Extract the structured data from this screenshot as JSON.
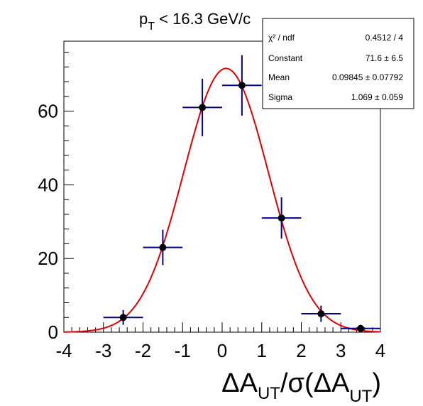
{
  "title": {
    "prefix": "p",
    "sub": "T",
    "rest": " < 16.3 GeV/c"
  },
  "xaxis_title": {
    "part1": "ΔA",
    "sub1": "UT",
    "part2": "/σ(ΔA",
    "sub2": "UT",
    "part3": ")"
  },
  "stats": {
    "rows": [
      {
        "label": "χ² / ndf",
        "value": "0.4512 / 4"
      },
      {
        "label": "Constant",
        "value": "71.6  ± 6.5"
      },
      {
        "label": "Mean",
        "value": "0.09845  ± 0.07792"
      },
      {
        "label": "Sigma",
        "value": "1.069  ± 0.059"
      }
    ]
  },
  "colors": {
    "points": "#000000",
    "errorbars": "#00008b",
    "fit": "#e00000",
    "frame": "#000000"
  },
  "chart_data": {
    "type": "scatter",
    "xlim": [
      -4,
      4
    ],
    "ylim": [
      0,
      79
    ],
    "xticks": [
      -4,
      -3,
      -2,
      -1,
      0,
      1,
      2,
      3,
      4
    ],
    "xtick_labels": [
      "-4",
      "-3",
      "-2",
      "-1",
      "0",
      "1",
      "2",
      "3",
      "4"
    ],
    "yticks": [
      0,
      20,
      40,
      60
    ],
    "ytick_labels": [
      "0",
      "20",
      "40",
      "60"
    ],
    "points": [
      {
        "x": -2.5,
        "y": 4,
        "xerr": 0.5,
        "yerr": 2
      },
      {
        "x": -1.5,
        "y": 23,
        "xerr": 0.5,
        "yerr": 4.8
      },
      {
        "x": -0.5,
        "y": 61,
        "xerr": 0.5,
        "yerr": 7.8
      },
      {
        "x": 0.5,
        "y": 67,
        "xerr": 0.5,
        "yerr": 8.2
      },
      {
        "x": 1.5,
        "y": 31,
        "xerr": 0.5,
        "yerr": 5.6
      },
      {
        "x": 2.5,
        "y": 5,
        "xerr": 0.5,
        "yerr": 2.2
      },
      {
        "x": 3.5,
        "y": 1,
        "xerr": 0.5,
        "yerr": 1
      }
    ],
    "fit": {
      "function": "gaus",
      "constant": 71.6,
      "mean": 0.09845,
      "sigma": 1.069
    }
  }
}
